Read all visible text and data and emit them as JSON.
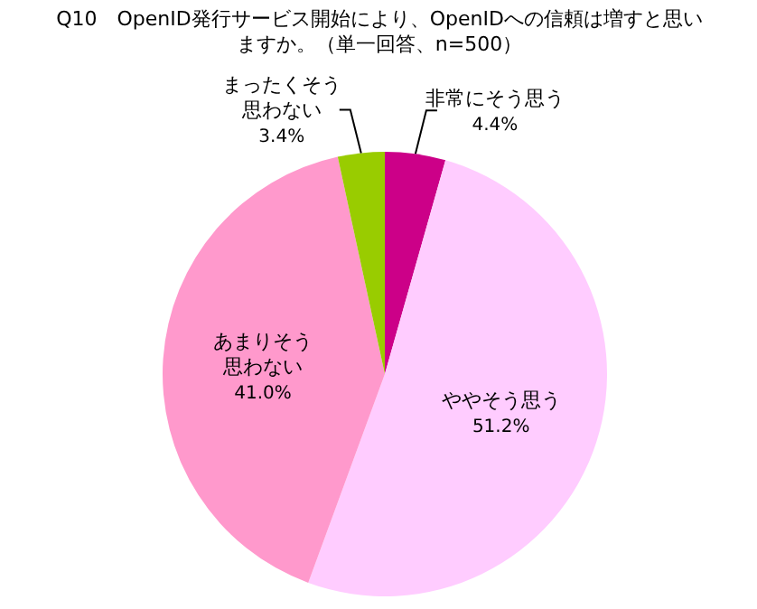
{
  "chart_data": {
    "type": "pie",
    "title": "Q10　OpenID発行サービス開始により、OpenIDへの信頼は増すと思いますか。（単一回答、n=500）",
    "categories": [
      "非常にそう思う",
      "ややそう思う",
      "あまりそう思わない",
      "まったくそう思わない"
    ],
    "values": [
      4.4,
      51.2,
      41.0,
      3.4
    ],
    "colors": [
      "#cc0088",
      "#ffccff",
      "#ff99cc",
      "#99cc00"
    ],
    "value_labels": [
      "4.4%",
      "51.2%",
      "41.0%",
      "3.4%"
    ],
    "legend": false
  }
}
